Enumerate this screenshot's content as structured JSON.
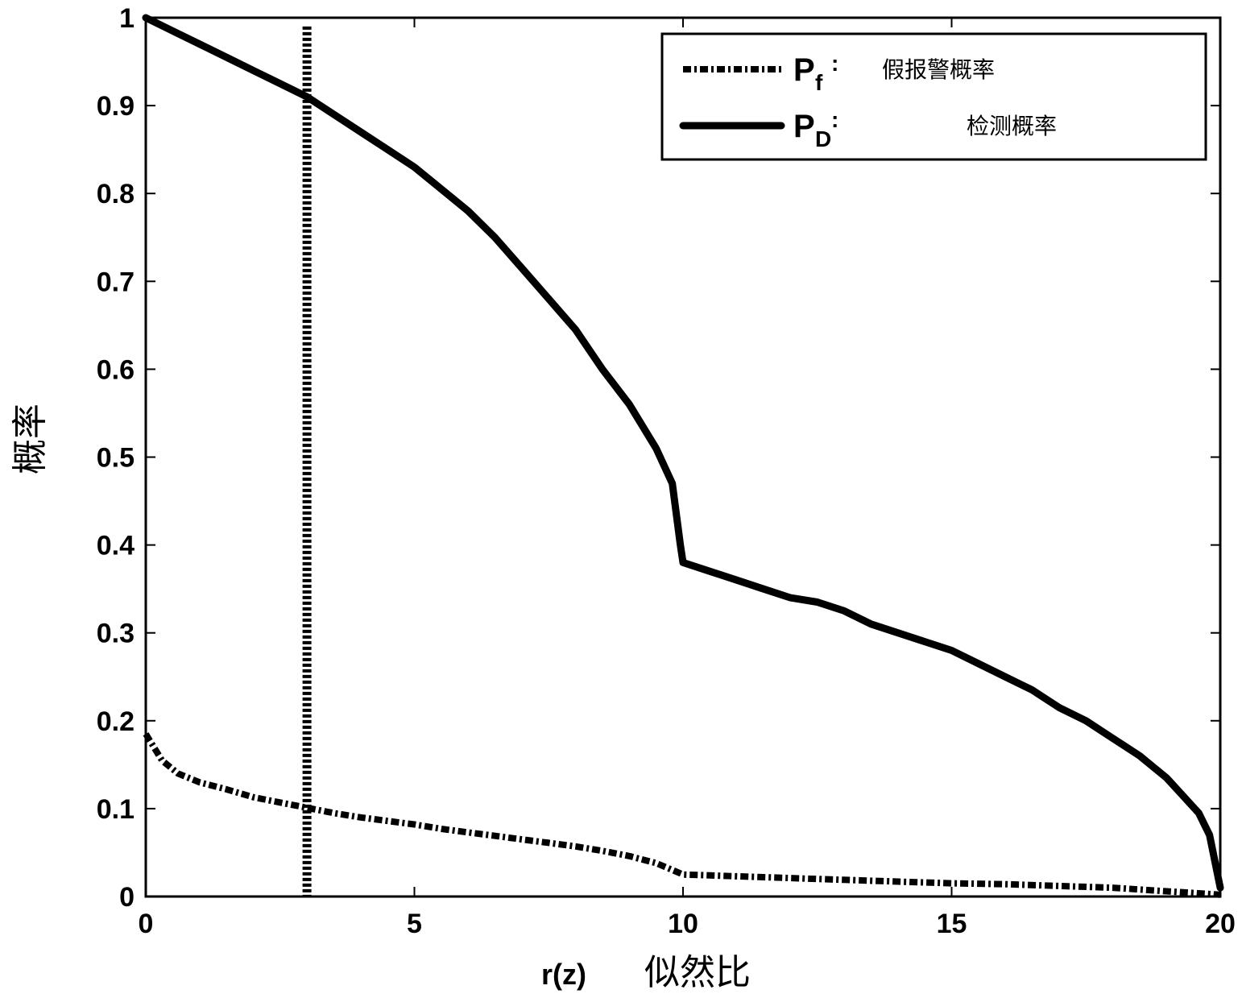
{
  "chart_data": {
    "type": "line",
    "xlabel": "r(z)",
    "xlabel_cn": "似然比",
    "ylabel": "概率",
    "xlim": [
      0,
      20
    ],
    "ylim": [
      0,
      1
    ],
    "xticks": [
      0,
      5,
      10,
      15,
      20
    ],
    "yticks": [
      0,
      0.1,
      0.2,
      0.3,
      0.4,
      0.5,
      0.6,
      0.7,
      0.8,
      0.9,
      1
    ],
    "grid": false,
    "legend_position": "top-right",
    "threshold_x": 3,
    "series": [
      {
        "name": "P_f",
        "symbol": "P",
        "subscript": "f",
        "label_suffix": ":",
        "description": "假报警概率",
        "style": "dash-dot",
        "x": [
          0,
          0.3,
          0.6,
          1,
          1.5,
          2,
          2.5,
          3,
          3.5,
          4,
          4.5,
          5,
          5.5,
          6,
          6.5,
          7,
          7.5,
          8,
          8.5,
          9,
          9.5,
          10,
          10.5,
          11,
          11.5,
          12,
          13,
          14,
          15,
          16,
          17,
          18,
          18.5,
          19,
          19.5,
          20
        ],
        "y": [
          0.185,
          0.155,
          0.14,
          0.13,
          0.122,
          0.113,
          0.107,
          0.101,
          0.095,
          0.09,
          0.086,
          0.082,
          0.077,
          0.073,
          0.069,
          0.065,
          0.061,
          0.057,
          0.052,
          0.046,
          0.038,
          0.025,
          0.024,
          0.023,
          0.022,
          0.021,
          0.019,
          0.017,
          0.015,
          0.014,
          0.012,
          0.01,
          0.008,
          0.006,
          0.004,
          0.002
        ]
      },
      {
        "name": "P_D",
        "symbol": "P",
        "subscript": "D",
        "label_suffix": ":",
        "description": "检测概率",
        "style": "solid",
        "x": [
          0,
          0.5,
          1,
          1.5,
          2,
          2.5,
          3,
          3.5,
          4,
          4.5,
          5,
          5.5,
          6,
          6.5,
          7,
          7.5,
          8,
          8.5,
          9,
          9.5,
          9.8,
          9.95,
          10,
          10.5,
          11,
          11.5,
          12,
          12.5,
          13,
          13.5,
          14,
          14.5,
          15,
          15.5,
          16,
          16.5,
          17,
          17.5,
          18,
          18.5,
          19,
          19.3,
          19.6,
          19.8,
          20
        ],
        "y": [
          1,
          0.985,
          0.97,
          0.955,
          0.94,
          0.925,
          0.91,
          0.89,
          0.87,
          0.85,
          0.83,
          0.805,
          0.78,
          0.75,
          0.715,
          0.68,
          0.645,
          0.6,
          0.56,
          0.51,
          0.47,
          0.4,
          0.38,
          0.37,
          0.36,
          0.35,
          0.34,
          0.335,
          0.325,
          0.31,
          0.3,
          0.29,
          0.28,
          0.265,
          0.25,
          0.235,
          0.215,
          0.2,
          0.18,
          0.16,
          0.135,
          0.115,
          0.095,
          0.07,
          0.01
        ]
      }
    ]
  }
}
